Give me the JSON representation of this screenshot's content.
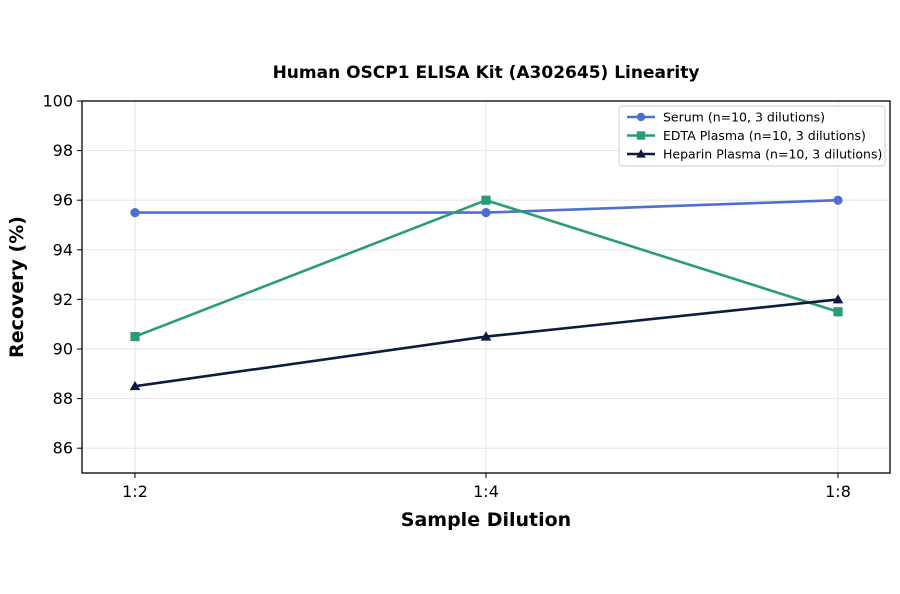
{
  "chart_data": {
    "type": "line",
    "title": "Human OSCP1 ELISA Kit (A302645) Linearity",
    "xlabel": "Sample Dilution",
    "ylabel": "Recovery (%)",
    "categories": [
      "1:2",
      "1:4",
      "1:8"
    ],
    "ylim": [
      85,
      100
    ],
    "yticks": [
      86,
      88,
      90,
      92,
      94,
      96,
      98,
      100
    ],
    "grid": true,
    "legend_position": "top-right",
    "series": [
      {
        "name": "Serum (n=10, 3 dilutions)",
        "values": [
          95.5,
          95.5,
          96.0
        ],
        "color": "#4C6FD1",
        "marker": "circle"
      },
      {
        "name": "EDTA Plasma (n=10, 3 dilutions)",
        "values": [
          90.5,
          96.0,
          91.5
        ],
        "color": "#2A9D72",
        "marker": "square"
      },
      {
        "name": "Heparin Plasma (n=10, 3 dilutions)",
        "values": [
          88.5,
          90.5,
          92.0
        ],
        "color": "#0D1B3E",
        "marker": "triangle"
      }
    ]
  }
}
